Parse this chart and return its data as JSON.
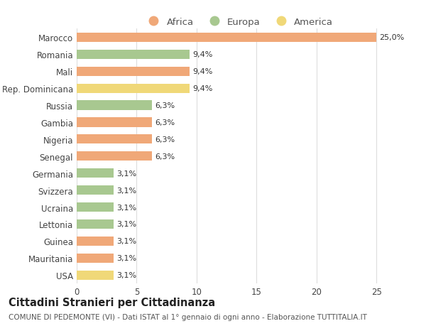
{
  "categories": [
    "USA",
    "Mauritania",
    "Guinea",
    "Lettonia",
    "Ucraina",
    "Svizzera",
    "Germania",
    "Senegal",
    "Nigeria",
    "Gambia",
    "Russia",
    "Rep. Dominicana",
    "Mali",
    "Romania",
    "Marocco"
  ],
  "values": [
    3.1,
    3.1,
    3.1,
    3.1,
    3.1,
    3.1,
    3.1,
    6.3,
    6.3,
    6.3,
    6.3,
    9.4,
    9.4,
    9.4,
    25.0
  ],
  "continents": [
    "America",
    "Africa",
    "Africa",
    "Europa",
    "Europa",
    "Europa",
    "Europa",
    "Africa",
    "Africa",
    "Africa",
    "Europa",
    "America",
    "Africa",
    "Europa",
    "Africa"
  ],
  "colors": {
    "Africa": "#F0A878",
    "Europa": "#A8C890",
    "America": "#F0D878"
  },
  "labels": [
    "3,1%",
    "3,1%",
    "3,1%",
    "3,1%",
    "3,1%",
    "3,1%",
    "3,1%",
    "6,3%",
    "6,3%",
    "6,3%",
    "6,3%",
    "9,4%",
    "9,4%",
    "9,4%",
    "25,0%"
  ],
  "title": "Cittadini Stranieri per Cittadinanza",
  "subtitle": "COMUNE DI PEDEMONTE (VI) - Dati ISTAT al 1° gennaio di ogni anno - Elaborazione TUTTITALIA.IT",
  "xlim": [
    0,
    27
  ],
  "xticks": [
    0,
    5,
    10,
    15,
    20,
    25
  ],
  "legend_labels": [
    "Africa",
    "Europa",
    "America"
  ],
  "legend_colors": [
    "#F0A878",
    "#A8C890",
    "#F0D878"
  ],
  "bg_color": "#ffffff",
  "grid_color": "#dddddd",
  "bar_height": 0.55,
  "label_fontsize": 8,
  "title_fontsize": 10.5,
  "subtitle_fontsize": 7.5,
  "tick_fontsize": 8.5
}
